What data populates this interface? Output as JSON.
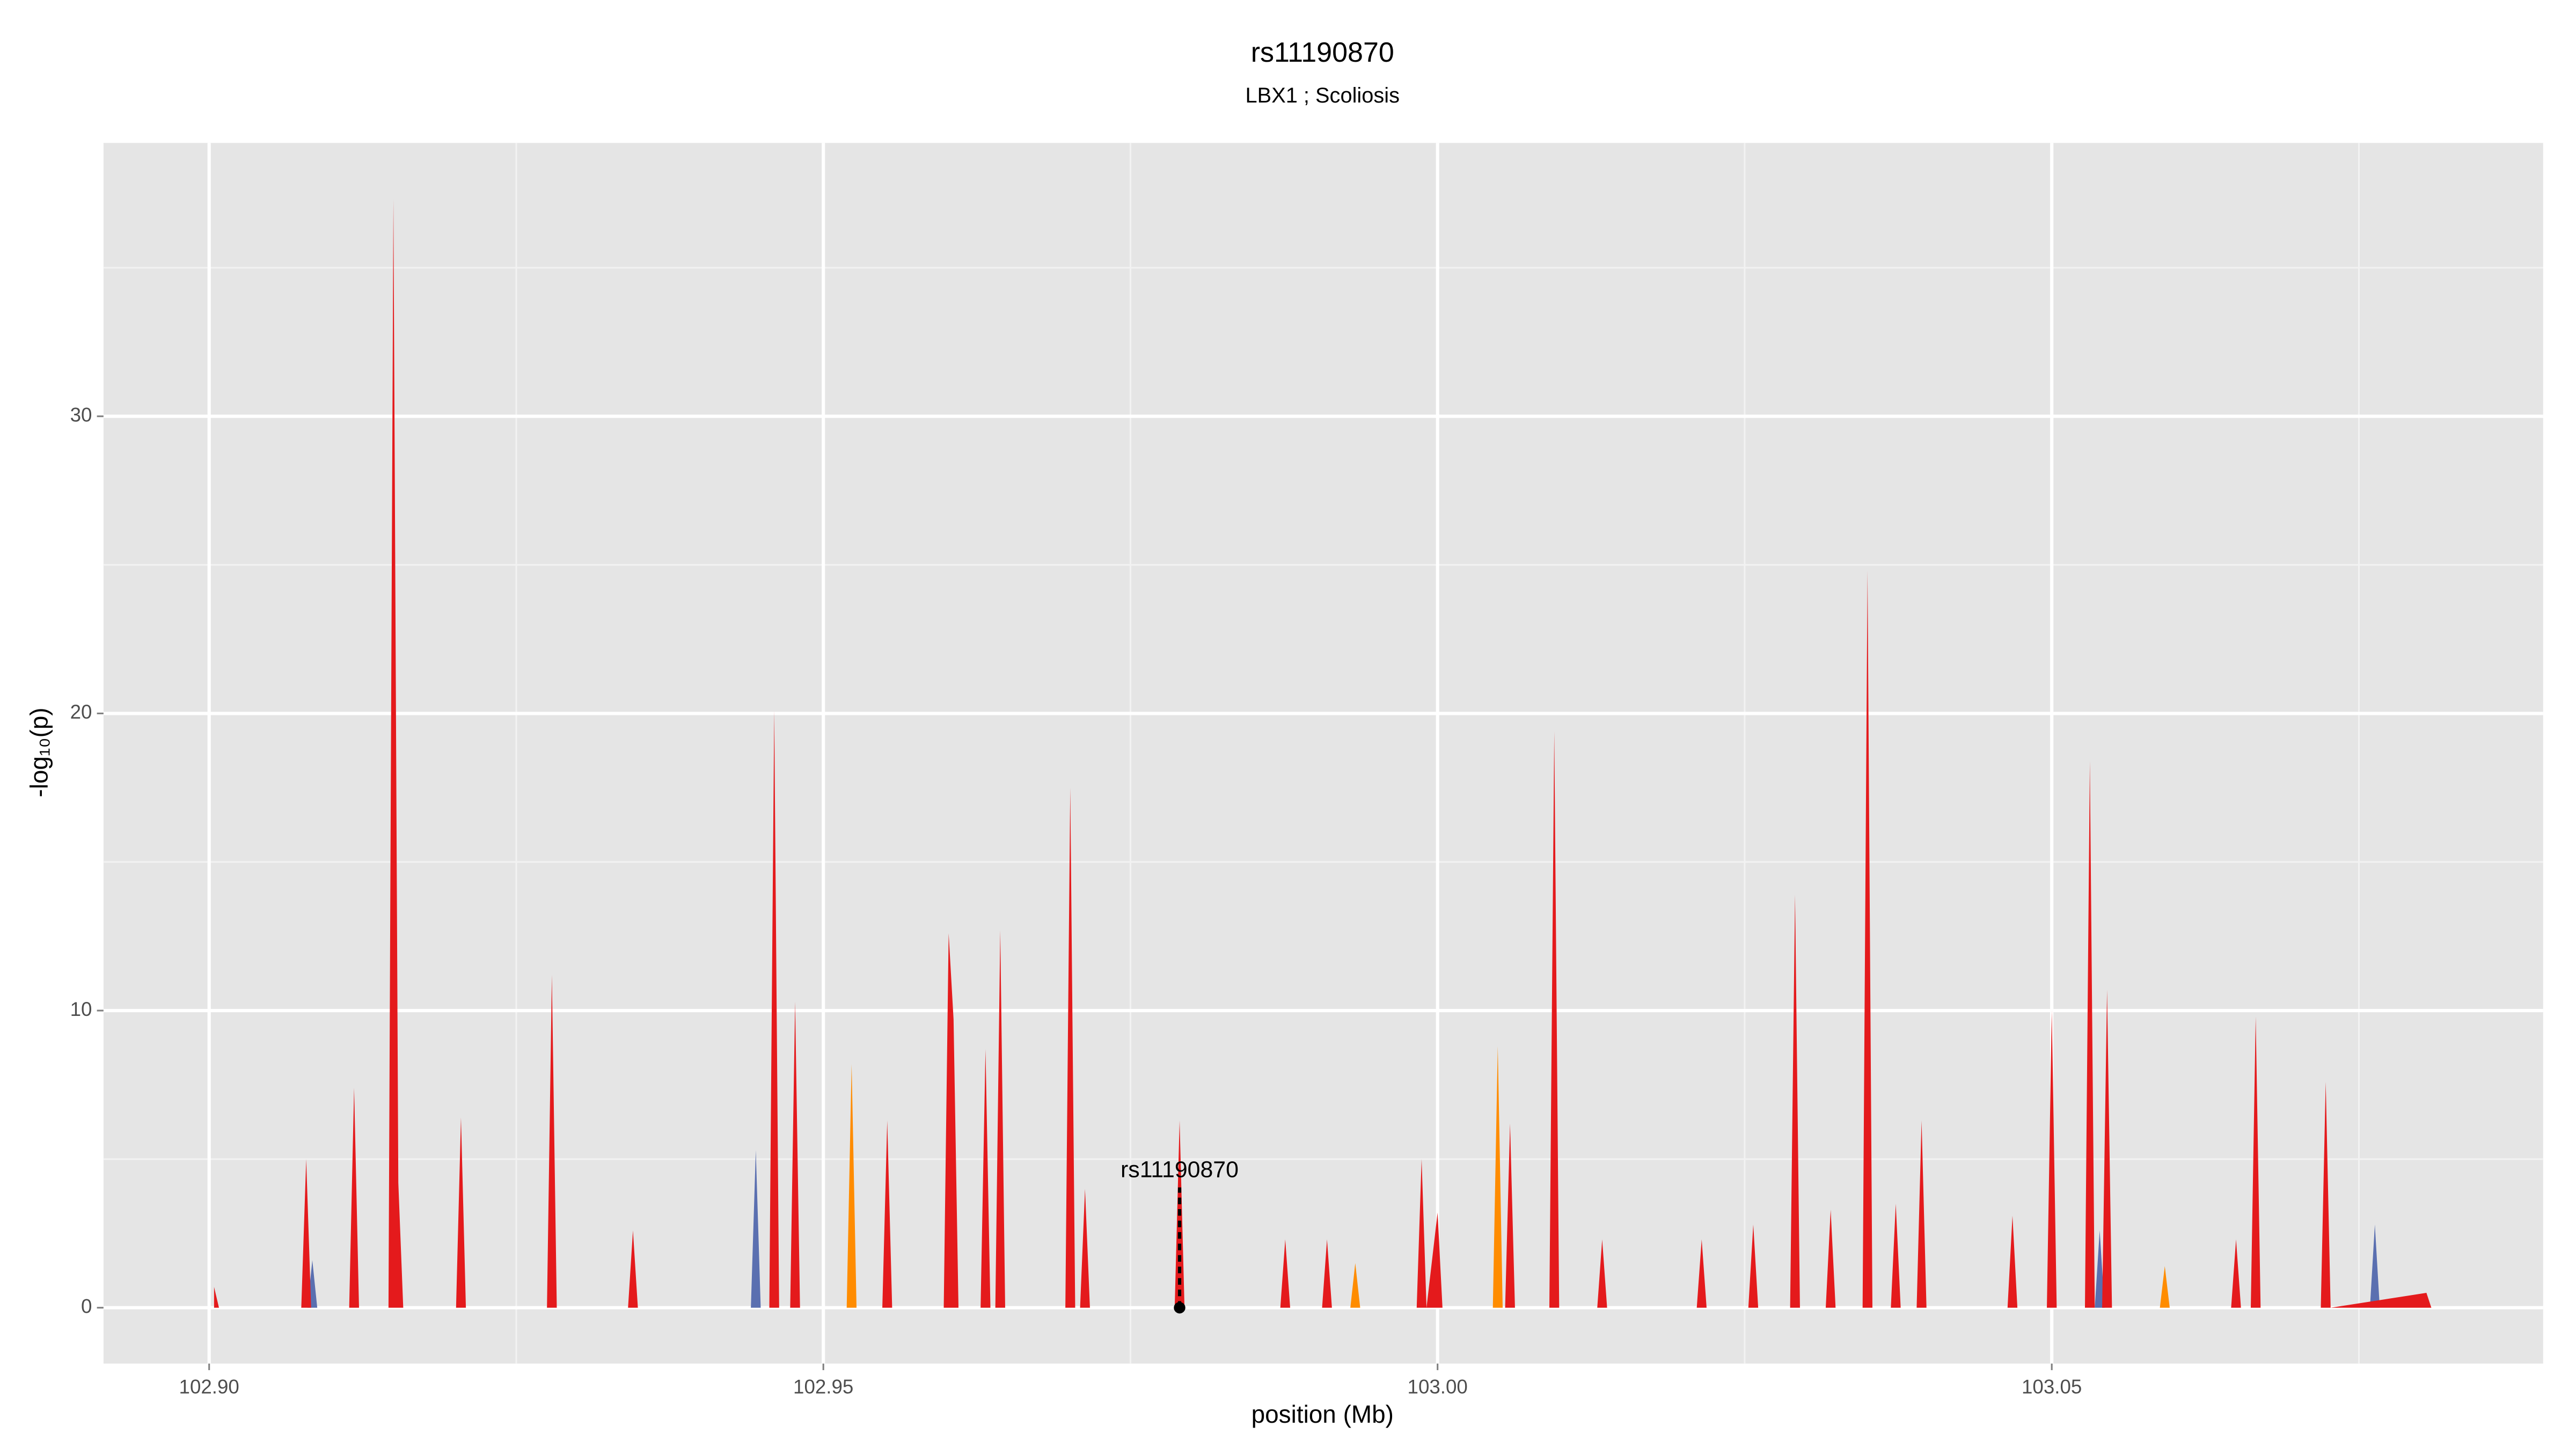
{
  "chart_data": {
    "type": "area",
    "title": "rs11190870",
    "subtitle": "LBX1 ; Scoliosis",
    "xlabel": "position (Mb)",
    "ylabel": "-log₁₀(p)",
    "xlim": [
      102.8914,
      103.09
    ],
    "ylim": [
      -1.88,
      39.2
    ],
    "xticks": [
      {
        "value": 102.9,
        "label": "102.90"
      },
      {
        "value": 102.95,
        "label": "102.95"
      },
      {
        "value": 103.0,
        "label": "103.00"
      },
      {
        "value": 103.05,
        "label": "103.05"
      }
    ],
    "xminor": [
      102.925,
      102.975,
      103.025,
      103.075
    ],
    "yticks": [
      0,
      10,
      20,
      30
    ],
    "yminor": [
      5,
      15,
      25,
      35
    ],
    "grid": true,
    "series": [
      {
        "color": "#5a6fb0",
        "x": [
          102.908,
          102.9084,
          102.9088,
          102.9441,
          102.9445,
          102.9449,
          103.0535,
          103.0539,
          103.0543,
          103.0759,
          103.0763,
          103.0767
        ],
        "values": [
          0,
          1.6,
          0,
          0,
          5.3,
          0,
          0,
          2.6,
          0,
          0,
          2.8,
          0
        ]
      },
      {
        "color": "#ff8c00",
        "x": [
          102.9519,
          102.9523,
          102.9527,
          102.9929,
          102.9933,
          102.9937,
          103.0045,
          103.0049,
          103.0053,
          103.0588,
          103.0592,
          103.0596
        ],
        "values": [
          0,
          8.2,
          0,
          0,
          1.5,
          0,
          0,
          8.8,
          0,
          0,
          1.4,
          0
        ]
      },
      {
        "color": "#e41a1c",
        "x": [
          102.9004,
          102.9008,
          102.9075,
          102.9079,
          102.9083,
          102.9114,
          102.9118,
          102.9122,
          102.9146,
          102.915,
          102.9154,
          102.9158,
          102.9201,
          102.9205,
          102.9209,
          102.9275,
          102.9279,
          102.9283,
          102.9341,
          102.9345,
          102.9349,
          102.9456,
          102.946,
          102.9464,
          102.9473,
          102.9477,
          102.9481,
          102.9548,
          102.9552,
          102.9556,
          102.9598,
          102.9602,
          102.9606,
          102.961,
          102.9628,
          102.9632,
          102.9636,
          102.964,
          102.9644,
          102.9648,
          102.9697,
          102.9701,
          102.9705,
          102.9709,
          102.9713,
          102.9717,
          102.9786,
          102.979,
          102.9794,
          102.9872,
          102.9876,
          102.988,
          102.9906,
          102.991,
          102.9914,
          102.9983,
          102.9987,
          102.9991,
          103.0,
          103.0004,
          103.0055,
          103.0059,
          103.0063,
          103.0091,
          103.0095,
          103.0099,
          103.013,
          103.0134,
          103.0138,
          103.0211,
          103.0215,
          103.0219,
          103.0253,
          103.0257,
          103.0261,
          103.0287,
          103.0291,
          103.0295,
          103.0316,
          103.032,
          103.0324,
          103.0346,
          103.035,
          103.0354,
          103.0369,
          103.0373,
          103.0377,
          103.039,
          103.0394,
          103.0398,
          103.0464,
          103.0468,
          103.0472,
          103.0496,
          103.05,
          103.0504,
          103.0527,
          103.0531,
          103.0535,
          103.0541,
          103.0545,
          103.0549,
          103.0646,
          103.065,
          103.0654,
          103.0662,
          103.0666,
          103.067,
          103.0719,
          103.0723,
          103.0727,
          103.0805,
          103.0809
        ],
        "values": [
          0.7,
          0,
          0,
          5.0,
          0,
          0,
          7.4,
          0,
          0,
          37.3,
          4.2,
          0,
          0,
          6.4,
          0,
          0,
          11.2,
          0,
          0,
          2.6,
          0,
          0,
          20.1,
          0,
          0,
          10.3,
          0,
          0,
          6.3,
          0,
          0,
          12.6,
          9.7,
          0,
          0,
          8.7,
          0,
          0,
          12.7,
          0,
          0,
          17.5,
          0,
          0,
          4.0,
          0,
          0,
          6.3,
          0,
          0,
          2.3,
          0,
          0,
          2.3,
          0,
          0,
          5.0,
          0,
          3.2,
          0,
          0,
          6.2,
          0,
          0,
          19.4,
          0,
          0,
          2.3,
          0,
          0,
          2.3,
          0,
          0,
          2.8,
          0,
          0,
          13.9,
          0,
          0,
          3.3,
          0,
          0,
          24.8,
          0,
          0,
          3.5,
          0,
          0,
          6.3,
          0,
          0,
          3.1,
          0,
          0,
          10.0,
          0,
          0,
          18.4,
          0,
          0,
          10.7,
          0,
          0,
          2.3,
          0,
          0,
          9.8,
          0,
          0,
          7.6,
          0,
          0.5,
          0
        ]
      }
    ],
    "annotation": {
      "text": "rs11190870",
      "x": 102.979,
      "y": 4.6,
      "point_y": 0
    }
  }
}
